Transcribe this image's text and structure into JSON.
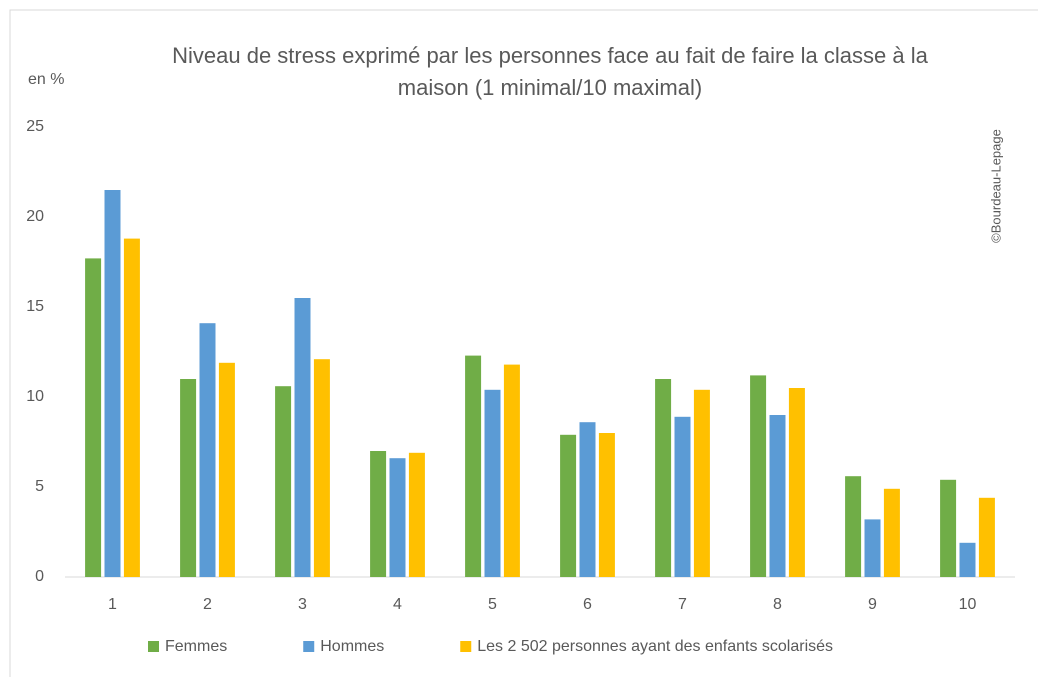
{
  "chart_data": {
    "type": "bar",
    "title": "Niveau de stress exprimé par les personnes face au fait de faire la classe à la maison (1 minimal/10 maximal)",
    "y_label": "en %",
    "annotation": "©Bourdeau-Lepage",
    "categories": [
      "1",
      "2",
      "3",
      "4",
      "5",
      "6",
      "7",
      "8",
      "9",
      "10"
    ],
    "series": [
      {
        "name": "Femmes",
        "color": "#70ad47",
        "values": [
          17.7,
          11.0,
          10.6,
          7.0,
          12.3,
          7.9,
          11.0,
          11.2,
          5.6,
          5.4
        ]
      },
      {
        "name": "Hommes",
        "color": "#5b9bd5",
        "values": [
          21.5,
          14.1,
          15.5,
          6.6,
          10.4,
          8.6,
          8.9,
          9.0,
          3.2,
          1.9
        ]
      },
      {
        "name": "Les 2 502 personnes ayant des enfants scolarisés",
        "color": "#ffc000",
        "values": [
          18.8,
          11.9,
          12.1,
          6.9,
          11.8,
          8.0,
          10.4,
          10.5,
          4.9,
          4.4
        ]
      }
    ],
    "ylim": [
      0,
      25
    ],
    "yticks": [
      0,
      5,
      10,
      15,
      20,
      25
    ],
    "grid": false,
    "legend": "bottom"
  }
}
